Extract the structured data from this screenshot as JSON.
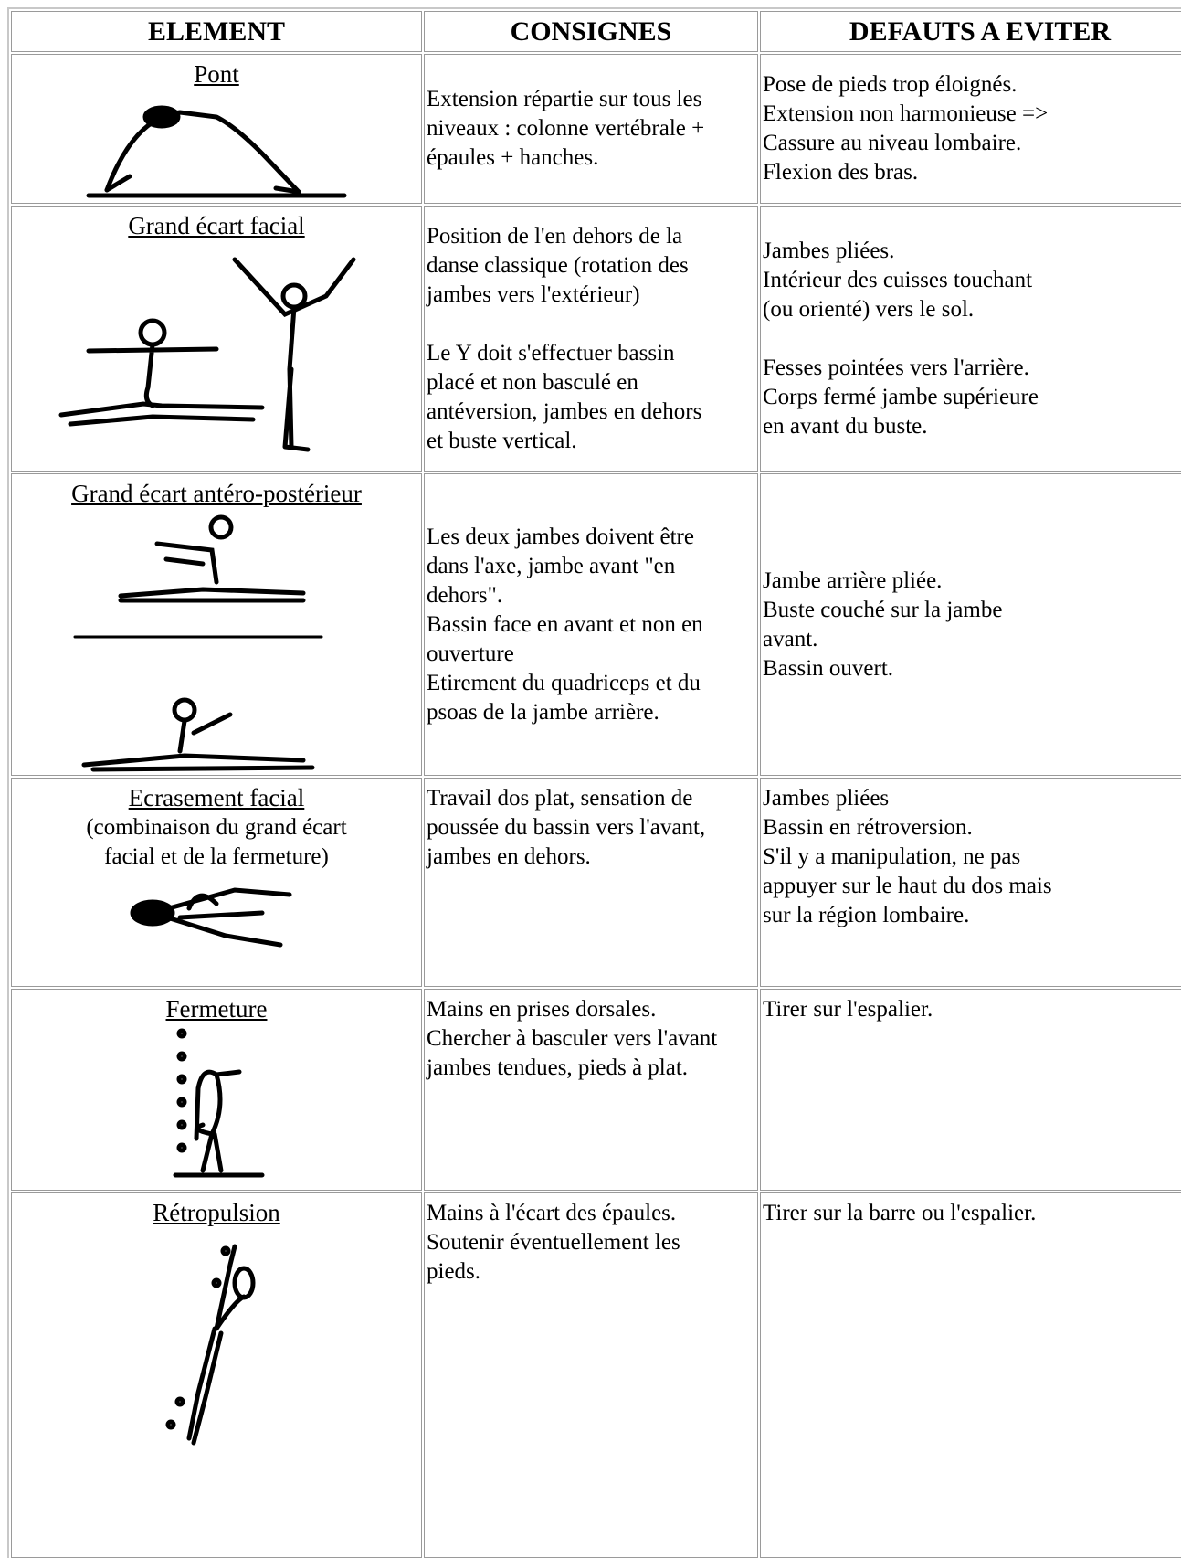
{
  "table": {
    "headers": [
      "ELEMENT",
      "CONSIGNES",
      "DEFAUTS A EVITER"
    ],
    "rows": [
      {
        "element": "Pont",
        "consignes": [
          [
            "Extension répartie sur tous les",
            "niveaux : colonne vertébrale +",
            "épaules + hanches."
          ]
        ],
        "defauts": [
          [
            "Pose de pieds trop éloignés.",
            "Extension non harmonieuse =>",
            "Cassure au niveau lombaire.",
            "Flexion des bras."
          ]
        ]
      },
      {
        "element": "Grand écart facial",
        "consignes": [
          [
            "Position de l'en dehors de la",
            "danse classique (rotation des",
            "jambes vers l'extérieur)"
          ],
          [
            "Le Y doit s'effectuer bassin",
            "placé et non basculé en",
            "antéversion, jambes en dehors",
            "et buste vertical."
          ]
        ],
        "defauts": [
          [
            "Jambes pliées.",
            "Intérieur des cuisses touchant",
            "(ou orienté) vers le sol."
          ],
          [
            "Fesses pointées vers l'arrière.",
            "Corps fermé jambe supérieure",
            "en avant du buste."
          ]
        ]
      },
      {
        "element": "Grand écart antéro-postérieur",
        "consignes": [
          [
            "Les deux jambes doivent être",
            "dans l'axe, jambe avant \"en",
            "dehors\".",
            "Bassin face en avant et non en",
            "ouverture",
            "Etirement du quadriceps et du",
            "psoas de la jambe arrière."
          ]
        ],
        "defauts": [
          [
            "Jambe arrière pliée.",
            "Buste couché sur la jambe",
            "avant.",
            "Bassin ouvert."
          ]
        ]
      },
      {
        "element": "Ecrasement facial",
        "note": [
          "(combinaison du grand écart",
          "facial et de la fermeture)"
        ],
        "consignes": [
          [
            "Travail dos plat, sensation de",
            "poussée du bassin vers l'avant,",
            "jambes en dehors."
          ]
        ],
        "defauts": [
          [
            "Jambes pliées",
            "Bassin en rétroversion.",
            "S'il y a manipulation, ne pas",
            "appuyer sur le haut du dos mais",
            "sur la région lombaire."
          ]
        ]
      },
      {
        "element": "Fermeture",
        "consignes": [
          [
            "Mains en prises dorsales.",
            "Chercher à basculer vers l'avant",
            "jambes tendues, pieds à plat."
          ]
        ],
        "defauts": [
          [
            "Tirer sur l'espalier."
          ]
        ]
      },
      {
        "element": "Rétropulsion",
        "consignes": [
          [
            "Mains à l'écart des épaules.",
            "Soutenir éventuellement les",
            "pieds."
          ]
        ],
        "defauts": [
          [
            "Tirer sur la barre ou l'espalier."
          ]
        ]
      }
    ]
  }
}
